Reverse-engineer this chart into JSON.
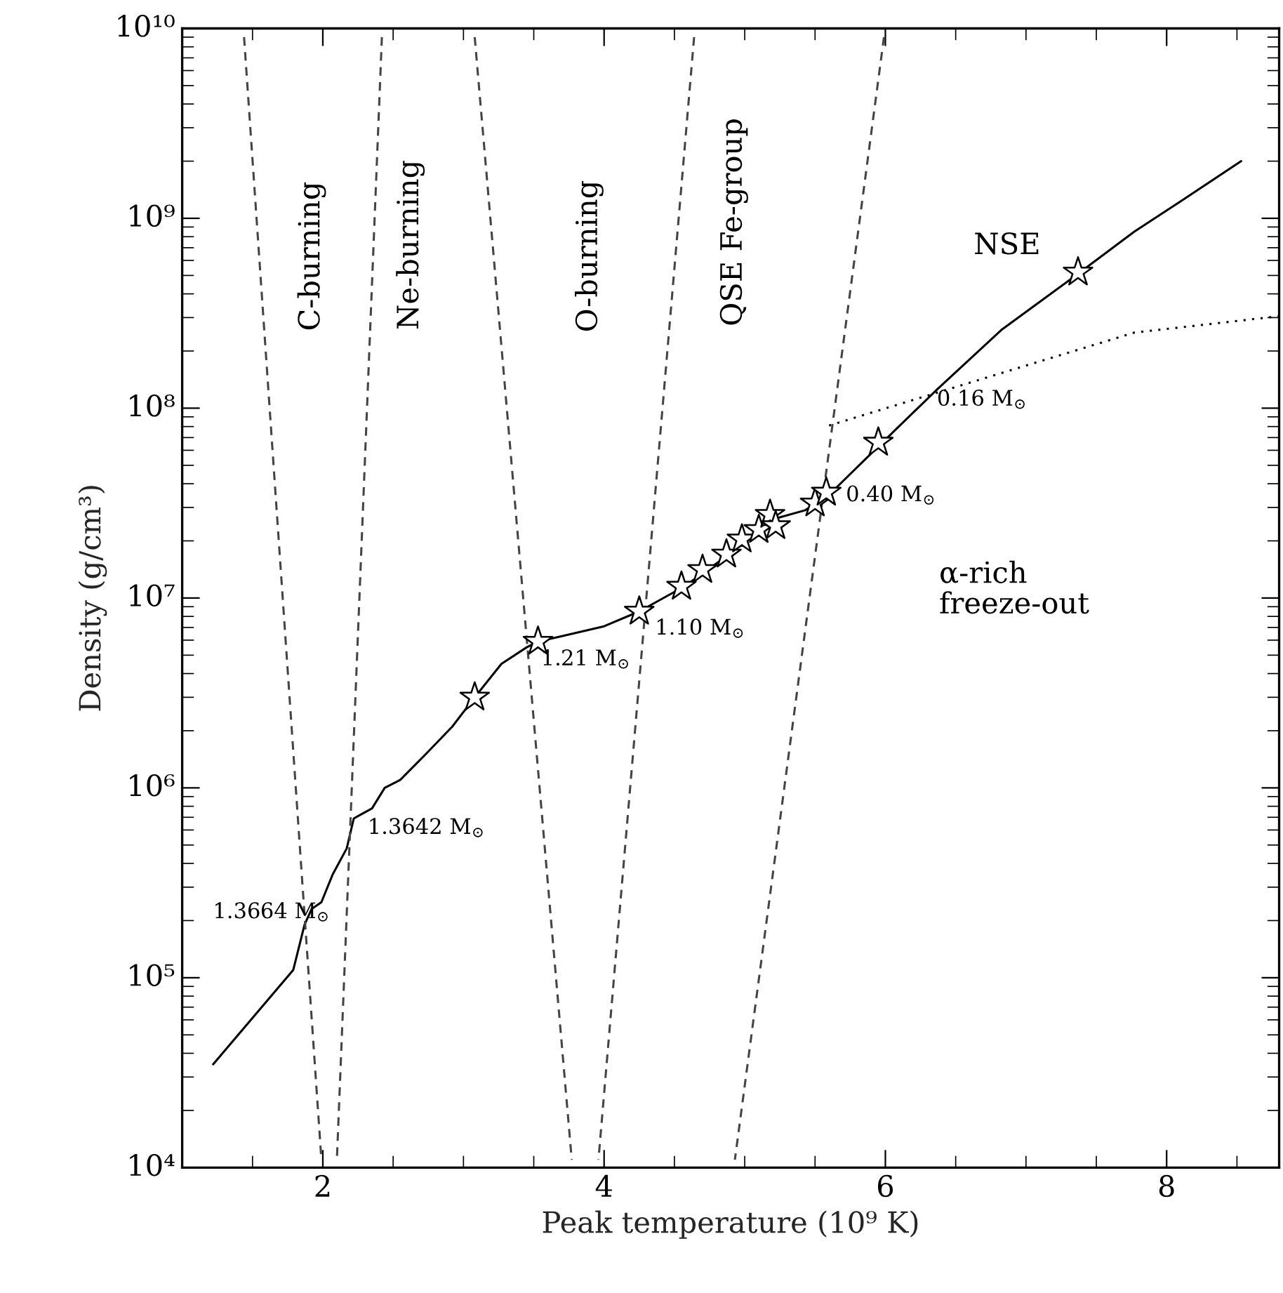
{
  "chart_data": {
    "type": "line",
    "xlabel": "Peak temperature (10⁹ K)",
    "ylabel": "Density (g/cm³)",
    "xlim": [
      1,
      8.8
    ],
    "xticks": [
      2,
      4,
      6,
      8
    ],
    "ylim": [
      10000,
      10000000000
    ],
    "log": "y",
    "yticks": [
      {
        "value": 10000,
        "label": "10⁴"
      },
      {
        "value": 100000,
        "label": "10⁵"
      },
      {
        "value": 1000000,
        "label": "10⁶"
      },
      {
        "value": 10000000,
        "label": "10⁷"
      },
      {
        "value": 100000000,
        "label": "10⁸"
      },
      {
        "value": 1000000000,
        "label": "10⁹"
      },
      {
        "value": 10000000000,
        "label": "10¹⁰"
      }
    ],
    "grid": false,
    "legend": false,
    "series": [
      {
        "color": "#000000",
        "line_style": "solid",
        "marker": "none",
        "x": [
          1.22,
          1.79,
          1.87,
          1.92,
          1.99,
          2.07,
          2.17,
          2.22,
          2.35,
          2.44,
          2.55,
          2.73,
          2.92,
          3.08,
          3.27,
          3.45,
          3.53,
          3.7,
          4.0,
          4.25,
          4.57,
          4.87,
          5.2,
          5.43,
          5.6,
          5.97,
          6.37,
          6.83,
          7.37,
          7.77,
          8.1,
          8.53
        ],
        "values": [
          35000,
          110000,
          190000,
          230000,
          250000,
          350000,
          480000,
          690000,
          780000,
          1000000,
          1100000,
          1500000,
          2100000,
          3000000,
          4500000,
          5500000,
          5900000,
          6300000,
          7100000,
          8500000,
          11500000,
          16600000,
          26000000,
          29000000,
          35000000,
          65000000,
          126000000,
          260000000,
          510000000,
          850000000,
          1230000000,
          2000000000
        ]
      },
      {
        "type": "scatter",
        "color": "#000000",
        "marker": "star",
        "x": [
          3.08,
          3.53,
          4.25,
          4.55,
          4.7,
          4.87,
          4.98,
          5.1,
          5.18,
          5.22,
          5.5,
          5.58,
          5.95,
          7.37
        ],
        "values": [
          3000000,
          5900000,
          8500000,
          11500000,
          14100000,
          17000000,
          20400000,
          22900000,
          27500000,
          24000000,
          31600000,
          36000000,
          66000000,
          520000000
        ]
      },
      {
        "color": "#000000",
        "line_style": "dotted",
        "marker": "none",
        "x": [
          5.6,
          7.77,
          8.8
        ],
        "values": [
          81000000,
          250000000,
          305000000
        ]
      },
      {
        "color": "#444444",
        "line_style": "dashed",
        "marker": "none",
        "x": [
          1.44,
          1.99
        ],
        "values": [
          9000000000,
          11000
        ]
      },
      {
        "color": "#444444",
        "line_style": "dashed",
        "marker": "none",
        "x": [
          2.42,
          2.1
        ],
        "values": [
          9000000000,
          11000
        ]
      },
      {
        "color": "#444444",
        "line_style": "dashed",
        "marker": "none",
        "x": [
          3.08,
          3.77
        ],
        "values": [
          9000000000,
          11000
        ]
      },
      {
        "color": "#444444",
        "line_style": "dashed",
        "marker": "none",
        "x": [
          4.64,
          3.96
        ],
        "values": [
          9000000000,
          11000
        ]
      },
      {
        "color": "#444444",
        "line_style": "dashed",
        "marker": "none",
        "x": [
          5.99,
          4.93
        ],
        "values": [
          9000000000,
          11000
        ]
      }
    ],
    "annotations": [
      "C-burning",
      "Ne-burning",
      "O-burning",
      "QSE Fe-group",
      "NSE",
      "α-rich\nfreeze-out",
      "1.3664 M$_{⊙}$",
      "1.3642 M$_{⊙}$",
      "1.21 M$_{⊙}$",
      "1.10 M$_{⊙}$",
      "0.40 M$_{⊙}$",
      "0.16 M$_{⊙}$"
    ]
  }
}
